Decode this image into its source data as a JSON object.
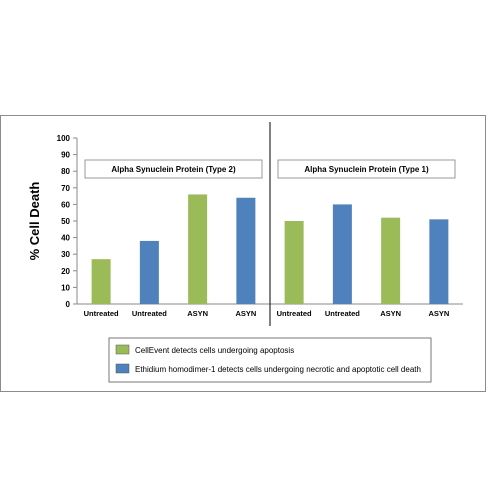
{
  "chart_data": {
    "type": "bar",
    "ylabel": "% Cell Death",
    "ylim": [
      0,
      100
    ],
    "yticks": [
      0,
      10,
      20,
      30,
      40,
      50,
      60,
      70,
      80,
      90,
      100
    ],
    "grid": false,
    "categories": [
      "Untreated",
      "Untreated",
      "ASYN",
      "ASYN",
      "Untreated",
      "Untreated",
      "ASYN",
      "ASYN"
    ],
    "values": [
      27,
      38,
      66,
      64,
      50,
      60,
      52,
      51
    ],
    "bar_series": [
      0,
      1,
      0,
      1,
      0,
      1,
      0,
      1
    ],
    "groups": [
      {
        "label": "Alpha Synuclein Protein (Type 2)",
        "start": 0,
        "end": 3
      },
      {
        "label": "Alpha Synuclein Protein (Type 1)",
        "start": 4,
        "end": 7
      }
    ],
    "series": [
      {
        "name": "CellEvent detects cells undergoing  apoptosis",
        "color": "#9bbb59"
      },
      {
        "name": "Ethidium homodimer-1  detects cells undergoing necrotic and apoptotic cell death",
        "color": "#4f81bd"
      }
    ],
    "legend_placement": "bottom"
  }
}
